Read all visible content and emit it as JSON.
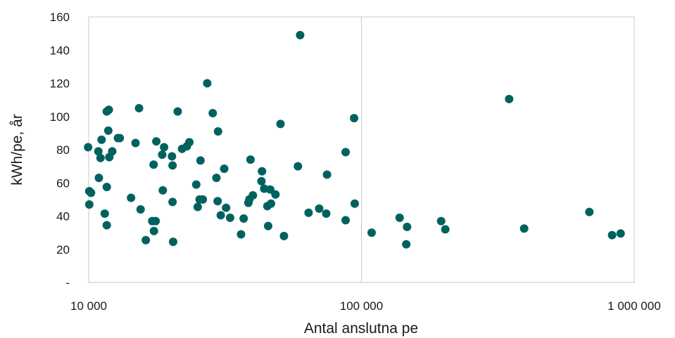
{
  "chart_data": {
    "type": "scatter",
    "title": "",
    "xlabel": "Antal anslutna pe",
    "ylabel": "kWh/pe, år",
    "x_scale": "log",
    "xlim": [
      10000,
      1000000
    ],
    "ylim": [
      0,
      160
    ],
    "x_ticks": [
      {
        "value": 10000,
        "label": "10 000"
      },
      {
        "value": 100000,
        "label": "100 000"
      },
      {
        "value": 1000000,
        "label": "1 000 000"
      }
    ],
    "y_ticks": [
      {
        "value": 0,
        "label": "-"
      },
      {
        "value": 20,
        "label": "20"
      },
      {
        "value": 40,
        "label": "40"
      },
      {
        "value": 60,
        "label": "60"
      },
      {
        "value": 80,
        "label": "80"
      },
      {
        "value": 100,
        "label": "100"
      },
      {
        "value": 120,
        "label": "120"
      },
      {
        "value": 140,
        "label": "140"
      },
      {
        "value": 160,
        "label": "160"
      }
    ],
    "grid": {
      "vertical_major": true,
      "horizontal": false
    },
    "marker_color": "#00625f",
    "series": [
      {
        "points": [
          {
            "x": 9950,
            "y": 81.5
          },
          {
            "x": 10050,
            "y": 55
          },
          {
            "x": 10200,
            "y": 54
          },
          {
            "x": 10050,
            "y": 47
          },
          {
            "x": 10850,
            "y": 79
          },
          {
            "x": 10900,
            "y": 63
          },
          {
            "x": 11050,
            "y": 75
          },
          {
            "x": 11150,
            "y": 86
          },
          {
            "x": 11450,
            "y": 41.5
          },
          {
            "x": 11650,
            "y": 103
          },
          {
            "x": 11850,
            "y": 104
          },
          {
            "x": 11800,
            "y": 91.5
          },
          {
            "x": 11650,
            "y": 57.5
          },
          {
            "x": 11650,
            "y": 34.5
          },
          {
            "x": 11900,
            "y": 75.5
          },
          {
            "x": 12200,
            "y": 79
          },
          {
            "x": 12800,
            "y": 87
          },
          {
            "x": 13000,
            "y": 87
          },
          {
            "x": 14300,
            "y": 51
          },
          {
            "x": 14850,
            "y": 84
          },
          {
            "x": 15300,
            "y": 105
          },
          {
            "x": 15500,
            "y": 44
          },
          {
            "x": 16200,
            "y": 25.5
          },
          {
            "x": 17100,
            "y": 37
          },
          {
            "x": 17300,
            "y": 71
          },
          {
            "x": 17350,
            "y": 31
          },
          {
            "x": 17600,
            "y": 37
          },
          {
            "x": 17700,
            "y": 85
          },
          {
            "x": 18600,
            "y": 77
          },
          {
            "x": 18700,
            "y": 55.5
          },
          {
            "x": 18900,
            "y": 81.5
          },
          {
            "x": 20200,
            "y": 76
          },
          {
            "x": 20300,
            "y": 70.5
          },
          {
            "x": 20300,
            "y": 48.5
          },
          {
            "x": 20400,
            "y": 24.5
          },
          {
            "x": 21200,
            "y": 103
          },
          {
            "x": 22000,
            "y": 80.5
          },
          {
            "x": 22900,
            "y": 82
          },
          {
            "x": 23400,
            "y": 84.5
          },
          {
            "x": 24800,
            "y": 59
          },
          {
            "x": 25100,
            "y": 45.5
          },
          {
            "x": 25500,
            "y": 50
          },
          {
            "x": 25700,
            "y": 73.5
          },
          {
            "x": 26200,
            "y": 50
          },
          {
            "x": 27200,
            "y": 120
          },
          {
            "x": 28500,
            "y": 102
          },
          {
            "x": 29400,
            "y": 63
          },
          {
            "x": 29700,
            "y": 49
          },
          {
            "x": 29800,
            "y": 91
          },
          {
            "x": 30500,
            "y": 40.5
          },
          {
            "x": 31400,
            "y": 68.5
          },
          {
            "x": 31900,
            "y": 45
          },
          {
            "x": 33000,
            "y": 39
          },
          {
            "x": 36200,
            "y": 29
          },
          {
            "x": 37000,
            "y": 38.5
          },
          {
            "x": 38500,
            "y": 48
          },
          {
            "x": 38800,
            "y": 50
          },
          {
            "x": 39200,
            "y": 74
          },
          {
            "x": 40000,
            "y": 52.5
          },
          {
            "x": 43000,
            "y": 61
          },
          {
            "x": 43200,
            "y": 67
          },
          {
            "x": 44000,
            "y": 56.5
          },
          {
            "x": 45200,
            "y": 46
          },
          {
            "x": 45500,
            "y": 34
          },
          {
            "x": 46300,
            "y": 56
          },
          {
            "x": 46600,
            "y": 47.5
          },
          {
            "x": 48400,
            "y": 53
          },
          {
            "x": 50500,
            "y": 95.5
          },
          {
            "x": 52000,
            "y": 28
          },
          {
            "x": 58500,
            "y": 70
          },
          {
            "x": 59600,
            "y": 149
          },
          {
            "x": 64000,
            "y": 42
          },
          {
            "x": 70000,
            "y": 44.5
          },
          {
            "x": 74300,
            "y": 41.5
          },
          {
            "x": 74800,
            "y": 65
          },
          {
            "x": 87500,
            "y": 78.5
          },
          {
            "x": 87500,
            "y": 37.5
          },
          {
            "x": 94000,
            "y": 99
          },
          {
            "x": 94500,
            "y": 47.5
          },
          {
            "x": 109000,
            "y": 30
          },
          {
            "x": 138000,
            "y": 39
          },
          {
            "x": 147000,
            "y": 33.5
          },
          {
            "x": 146000,
            "y": 23
          },
          {
            "x": 196000,
            "y": 37
          },
          {
            "x": 203000,
            "y": 32
          },
          {
            "x": 348000,
            "y": 110.5
          },
          {
            "x": 395000,
            "y": 32.5
          },
          {
            "x": 685000,
            "y": 42.5
          },
          {
            "x": 830000,
            "y": 28.5
          },
          {
            "x": 892000,
            "y": 29.5
          }
        ]
      }
    ]
  }
}
